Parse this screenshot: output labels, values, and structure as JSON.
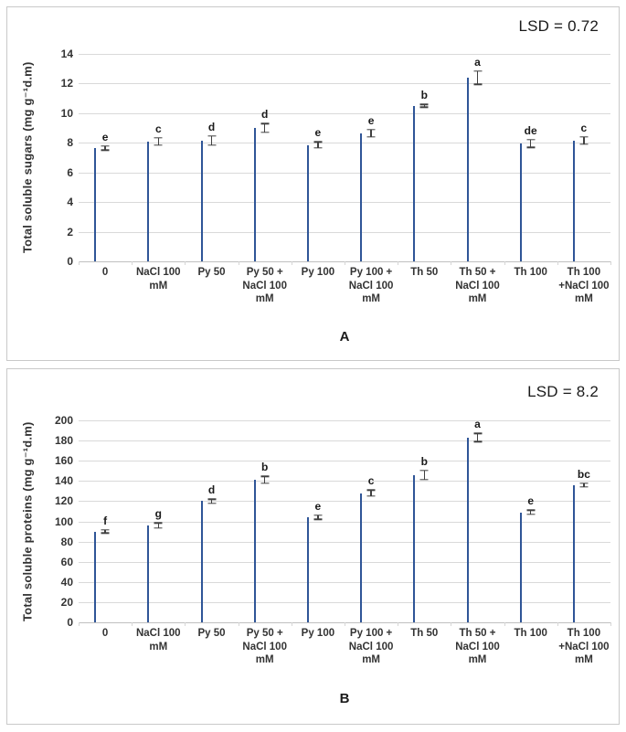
{
  "chart_data": [
    {
      "type": "bar",
      "panel": "A",
      "annotation": "LSD = 0.72",
      "ylabel": "Total soluble sugars (mg g⁻¹d.m)",
      "ylim": [
        0,
        14
      ],
      "yticks": [
        0,
        2,
        4,
        6,
        8,
        10,
        12,
        14
      ],
      "grid": true,
      "legend": "none",
      "bar_color": "#4472C4",
      "bar_border_color": "#2F5597",
      "categories": [
        "0",
        "NaCl 100 mM",
        "Py 50",
        "Py 50 + NaCl 100 mM",
        "Py 100",
        "Py 100 + NaCl 100 mM",
        "Th 50",
        "Th 50 + NaCl 100 mM",
        "Th 100",
        "Th 100 +NaCl 100 mM"
      ],
      "values": [
        7.65,
        8.1,
        8.15,
        9.0,
        7.85,
        8.65,
        10.5,
        12.4,
        7.95,
        8.15
      ],
      "errors": [
        0.15,
        0.25,
        0.3,
        0.3,
        0.2,
        0.25,
        0.1,
        0.45,
        0.25,
        0.25
      ],
      "sig_letters": [
        "e",
        "c",
        "d",
        "d",
        "e",
        "e",
        "b",
        "a",
        "de",
        "c"
      ]
    },
    {
      "type": "bar",
      "panel": "B",
      "annotation": "LSD = 8.2",
      "ylabel": "Total soluble proteins (mg g⁻¹d.m)",
      "ylim": [
        0,
        200
      ],
      "yticks": [
        0,
        20,
        40,
        60,
        80,
        100,
        120,
        140,
        160,
        180,
        200
      ],
      "grid": true,
      "legend": "none",
      "bar_color": "#4472C4",
      "bar_border_color": "#2F5597",
      "categories": [
        "0",
        "NaCl 100 mM",
        "Py 50",
        "Py 50 + NaCl 100 mM",
        "Py 100",
        "Py 100 + NaCl 100 mM",
        "Th 50",
        "Th 50 + NaCl 100 mM",
        "Th 100",
        "Th 100 +NaCl 100 mM"
      ],
      "values": [
        90,
        96,
        120,
        141,
        104,
        128,
        146,
        183,
        109,
        136
      ],
      "errors": [
        1.5,
        2.5,
        2,
        3.5,
        2,
        3,
        4.5,
        4,
        2,
        2
      ],
      "sig_letters": [
        "f",
        "g",
        "d",
        "b",
        "e",
        "c",
        "b",
        "a",
        "e",
        "bc"
      ]
    }
  ]
}
